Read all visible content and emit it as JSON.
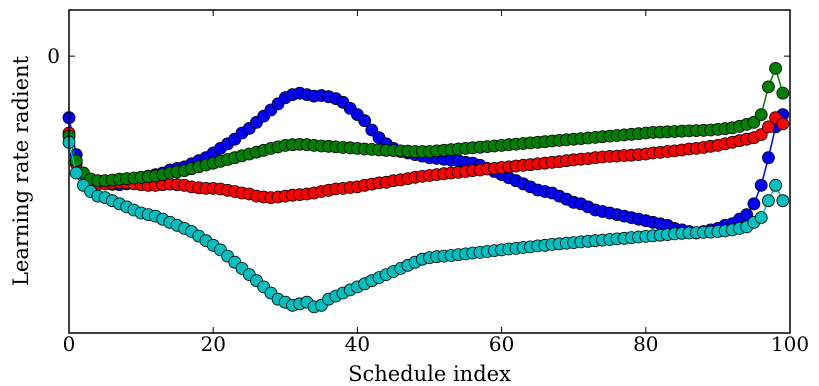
{
  "chart_data": {
    "type": "scatter",
    "title": "",
    "xlabel": "Schedule index",
    "ylabel": "Learning rate radient",
    "xlim": [
      0,
      100
    ],
    "ylim": [
      -0.9,
      0.15
    ],
    "xticks": [
      0,
      20,
      40,
      60,
      80,
      100
    ],
    "yticks": [
      0
    ],
    "grid": false,
    "legend": "none",
    "marker": "circle",
    "series": [
      {
        "color": "#0000ff",
        "x": [
          0,
          1,
          2,
          3,
          4,
          5,
          6,
          7,
          8,
          9,
          10,
          11,
          12,
          13,
          14,
          15,
          16,
          17,
          18,
          19,
          20,
          21,
          22,
          23,
          24,
          25,
          26,
          27,
          28,
          29,
          30,
          31,
          32,
          33,
          34,
          35,
          36,
          37,
          38,
          39,
          40,
          41,
          42,
          43,
          44,
          45,
          46,
          47,
          48,
          49,
          50,
          51,
          52,
          53,
          54,
          55,
          56,
          57,
          58,
          59,
          60,
          61,
          62,
          63,
          64,
          65,
          66,
          67,
          68,
          69,
          70,
          71,
          72,
          73,
          74,
          75,
          76,
          77,
          78,
          79,
          80,
          81,
          82,
          83,
          84,
          85,
          86,
          87,
          88,
          89,
          90,
          91,
          92,
          93,
          94,
          95,
          96,
          97,
          98,
          99
        ],
        "y": [
          -0.2,
          -0.32,
          -0.38,
          -0.4,
          -0.41,
          -0.415,
          -0.417,
          -0.418,
          -0.415,
          -0.41,
          -0.4,
          -0.39,
          -0.385,
          -0.38,
          -0.37,
          -0.365,
          -0.36,
          -0.35,
          -0.34,
          -0.33,
          -0.315,
          -0.3,
          -0.285,
          -0.27,
          -0.25,
          -0.235,
          -0.215,
          -0.195,
          -0.175,
          -0.155,
          -0.135,
          -0.125,
          -0.12,
          -0.125,
          -0.13,
          -0.128,
          -0.132,
          -0.138,
          -0.15,
          -0.17,
          -0.19,
          -0.21,
          -0.24,
          -0.265,
          -0.285,
          -0.3,
          -0.31,
          -0.315,
          -0.32,
          -0.325,
          -0.33,
          -0.332,
          -0.335,
          -0.338,
          -0.34,
          -0.345,
          -0.348,
          -0.355,
          -0.365,
          -0.375,
          -0.385,
          -0.395,
          -0.405,
          -0.415,
          -0.425,
          -0.435,
          -0.44,
          -0.445,
          -0.455,
          -0.465,
          -0.475,
          -0.48,
          -0.49,
          -0.5,
          -0.505,
          -0.51,
          -0.515,
          -0.52,
          -0.525,
          -0.53,
          -0.535,
          -0.54,
          -0.545,
          -0.55,
          -0.56,
          -0.565,
          -0.57,
          -0.575,
          -0.57,
          -0.565,
          -0.56,
          -0.55,
          -0.545,
          -0.53,
          -0.515,
          -0.48,
          -0.42,
          -0.33,
          -0.23,
          -0.19
        ]
      },
      {
        "color": "#ff0000",
        "x": [
          0,
          1,
          2,
          3,
          4,
          5,
          6,
          7,
          8,
          9,
          10,
          11,
          12,
          13,
          14,
          15,
          16,
          17,
          18,
          19,
          20,
          21,
          22,
          23,
          24,
          25,
          26,
          27,
          28,
          29,
          30,
          31,
          32,
          33,
          34,
          35,
          36,
          37,
          38,
          39,
          40,
          41,
          42,
          43,
          44,
          45,
          46,
          47,
          48,
          49,
          50,
          51,
          52,
          53,
          54,
          55,
          56,
          57,
          58,
          59,
          60,
          61,
          62,
          63,
          64,
          65,
          66,
          67,
          68,
          69,
          70,
          71,
          72,
          73,
          74,
          75,
          76,
          77,
          78,
          79,
          80,
          81,
          82,
          83,
          84,
          85,
          86,
          87,
          88,
          89,
          90,
          91,
          92,
          93,
          94,
          95,
          96,
          97,
          98,
          99
        ],
        "y": [
          -0.25,
          -0.35,
          -0.39,
          -0.41,
          -0.415,
          -0.415,
          -0.413,
          -0.41,
          -0.412,
          -0.415,
          -0.418,
          -0.42,
          -0.42,
          -0.418,
          -0.416,
          -0.418,
          -0.42,
          -0.425,
          -0.428,
          -0.43,
          -0.43,
          -0.432,
          -0.436,
          -0.44,
          -0.445,
          -0.448,
          -0.455,
          -0.458,
          -0.46,
          -0.458,
          -0.455,
          -0.452,
          -0.45,
          -0.448,
          -0.445,
          -0.44,
          -0.436,
          -0.432,
          -0.43,
          -0.427,
          -0.425,
          -0.42,
          -0.416,
          -0.412,
          -0.41,
          -0.405,
          -0.402,
          -0.398,
          -0.394,
          -0.391,
          -0.388,
          -0.385,
          -0.382,
          -0.38,
          -0.378,
          -0.375,
          -0.372,
          -0.37,
          -0.367,
          -0.365,
          -0.362,
          -0.36,
          -0.357,
          -0.355,
          -0.353,
          -0.35,
          -0.348,
          -0.345,
          -0.343,
          -0.34,
          -0.337,
          -0.335,
          -0.333,
          -0.33,
          -0.328,
          -0.326,
          -0.325,
          -0.323,
          -0.322,
          -0.32,
          -0.318,
          -0.315,
          -0.313,
          -0.31,
          -0.308,
          -0.305,
          -0.302,
          -0.3,
          -0.297,
          -0.293,
          -0.29,
          -0.285,
          -0.28,
          -0.275,
          -0.27,
          -0.265,
          -0.255,
          -0.23,
          -0.2,
          -0.22
        ]
      },
      {
        "color": "#008000",
        "x": [
          0,
          1,
          2,
          3,
          4,
          5,
          6,
          7,
          8,
          9,
          10,
          11,
          12,
          13,
          14,
          15,
          16,
          17,
          18,
          19,
          20,
          21,
          22,
          23,
          24,
          25,
          26,
          27,
          28,
          29,
          30,
          31,
          32,
          33,
          34,
          35,
          36,
          37,
          38,
          39,
          40,
          41,
          42,
          43,
          44,
          45,
          46,
          47,
          48,
          49,
          50,
          51,
          52,
          53,
          54,
          55,
          56,
          57,
          58,
          59,
          60,
          61,
          62,
          63,
          64,
          65,
          66,
          67,
          68,
          69,
          70,
          71,
          72,
          73,
          74,
          75,
          76,
          77,
          78,
          79,
          80,
          81,
          82,
          83,
          84,
          85,
          86,
          87,
          88,
          89,
          90,
          91,
          92,
          93,
          94,
          95,
          96,
          97,
          98,
          99
        ],
        "y": [
          -0.26,
          -0.34,
          -0.38,
          -0.4,
          -0.405,
          -0.405,
          -0.403,
          -0.4,
          -0.398,
          -0.396,
          -0.394,
          -0.392,
          -0.39,
          -0.385,
          -0.38,
          -0.376,
          -0.372,
          -0.366,
          -0.36,
          -0.354,
          -0.348,
          -0.342,
          -0.336,
          -0.33,
          -0.324,
          -0.318,
          -0.312,
          -0.306,
          -0.3,
          -0.295,
          -0.29,
          -0.288,
          -0.287,
          -0.288,
          -0.29,
          -0.292,
          -0.293,
          -0.295,
          -0.297,
          -0.298,
          -0.3,
          -0.302,
          -0.303,
          -0.305,
          -0.306,
          -0.307,
          -0.308,
          -0.309,
          -0.31,
          -0.31,
          -0.31,
          -0.308,
          -0.306,
          -0.304,
          -0.302,
          -0.3,
          -0.298,
          -0.296,
          -0.294,
          -0.292,
          -0.29,
          -0.288,
          -0.286,
          -0.284,
          -0.282,
          -0.28,
          -0.278,
          -0.276,
          -0.274,
          -0.272,
          -0.27,
          -0.268,
          -0.266,
          -0.264,
          -0.262,
          -0.26,
          -0.258,
          -0.256,
          -0.254,
          -0.252,
          -0.25,
          -0.248,
          -0.247,
          -0.246,
          -0.245,
          -0.244,
          -0.243,
          -0.242,
          -0.241,
          -0.24,
          -0.238,
          -0.236,
          -0.233,
          -0.228,
          -0.222,
          -0.215,
          -0.19,
          -0.1,
          -0.04,
          -0.12
        ]
      },
      {
        "color": "#00bfbf",
        "x": [
          0,
          1,
          2,
          3,
          4,
          5,
          6,
          7,
          8,
          9,
          10,
          11,
          12,
          13,
          14,
          15,
          16,
          17,
          18,
          19,
          20,
          21,
          22,
          23,
          24,
          25,
          26,
          27,
          28,
          29,
          30,
          31,
          32,
          33,
          34,
          35,
          36,
          37,
          38,
          39,
          40,
          41,
          42,
          43,
          44,
          45,
          46,
          47,
          48,
          49,
          50,
          51,
          52,
          53,
          54,
          55,
          56,
          57,
          58,
          59,
          60,
          61,
          62,
          63,
          64,
          65,
          66,
          67,
          68,
          69,
          70,
          71,
          72,
          73,
          74,
          75,
          76,
          77,
          78,
          79,
          80,
          81,
          82,
          83,
          84,
          85,
          86,
          87,
          88,
          89,
          90,
          91,
          92,
          93,
          94,
          95,
          96,
          97,
          98,
          99
        ],
        "y": [
          -0.28,
          -0.38,
          -0.42,
          -0.44,
          -0.455,
          -0.46,
          -0.47,
          -0.48,
          -0.49,
          -0.5,
          -0.51,
          -0.515,
          -0.52,
          -0.53,
          -0.54,
          -0.55,
          -0.56,
          -0.57,
          -0.585,
          -0.6,
          -0.615,
          -0.63,
          -0.65,
          -0.67,
          -0.69,
          -0.71,
          -0.73,
          -0.75,
          -0.77,
          -0.79,
          -0.8,
          -0.81,
          -0.805,
          -0.8,
          -0.815,
          -0.81,
          -0.79,
          -0.78,
          -0.77,
          -0.76,
          -0.75,
          -0.74,
          -0.73,
          -0.72,
          -0.71,
          -0.7,
          -0.69,
          -0.68,
          -0.67,
          -0.66,
          -0.655,
          -0.652,
          -0.65,
          -0.648,
          -0.645,
          -0.643,
          -0.64,
          -0.638,
          -0.635,
          -0.632,
          -0.63,
          -0.627,
          -0.625,
          -0.622,
          -0.62,
          -0.617,
          -0.615,
          -0.612,
          -0.61,
          -0.608,
          -0.606,
          -0.604,
          -0.602,
          -0.6,
          -0.598,
          -0.596,
          -0.594,
          -0.592,
          -0.59,
          -0.588,
          -0.586,
          -0.584,
          -0.582,
          -0.58,
          -0.578,
          -0.576,
          -0.575,
          -0.574,
          -0.573,
          -0.572,
          -0.57,
          -0.568,
          -0.565,
          -0.56,
          -0.555,
          -0.54,
          -0.525,
          -0.47,
          -0.42,
          -0.47
        ]
      }
    ]
  }
}
